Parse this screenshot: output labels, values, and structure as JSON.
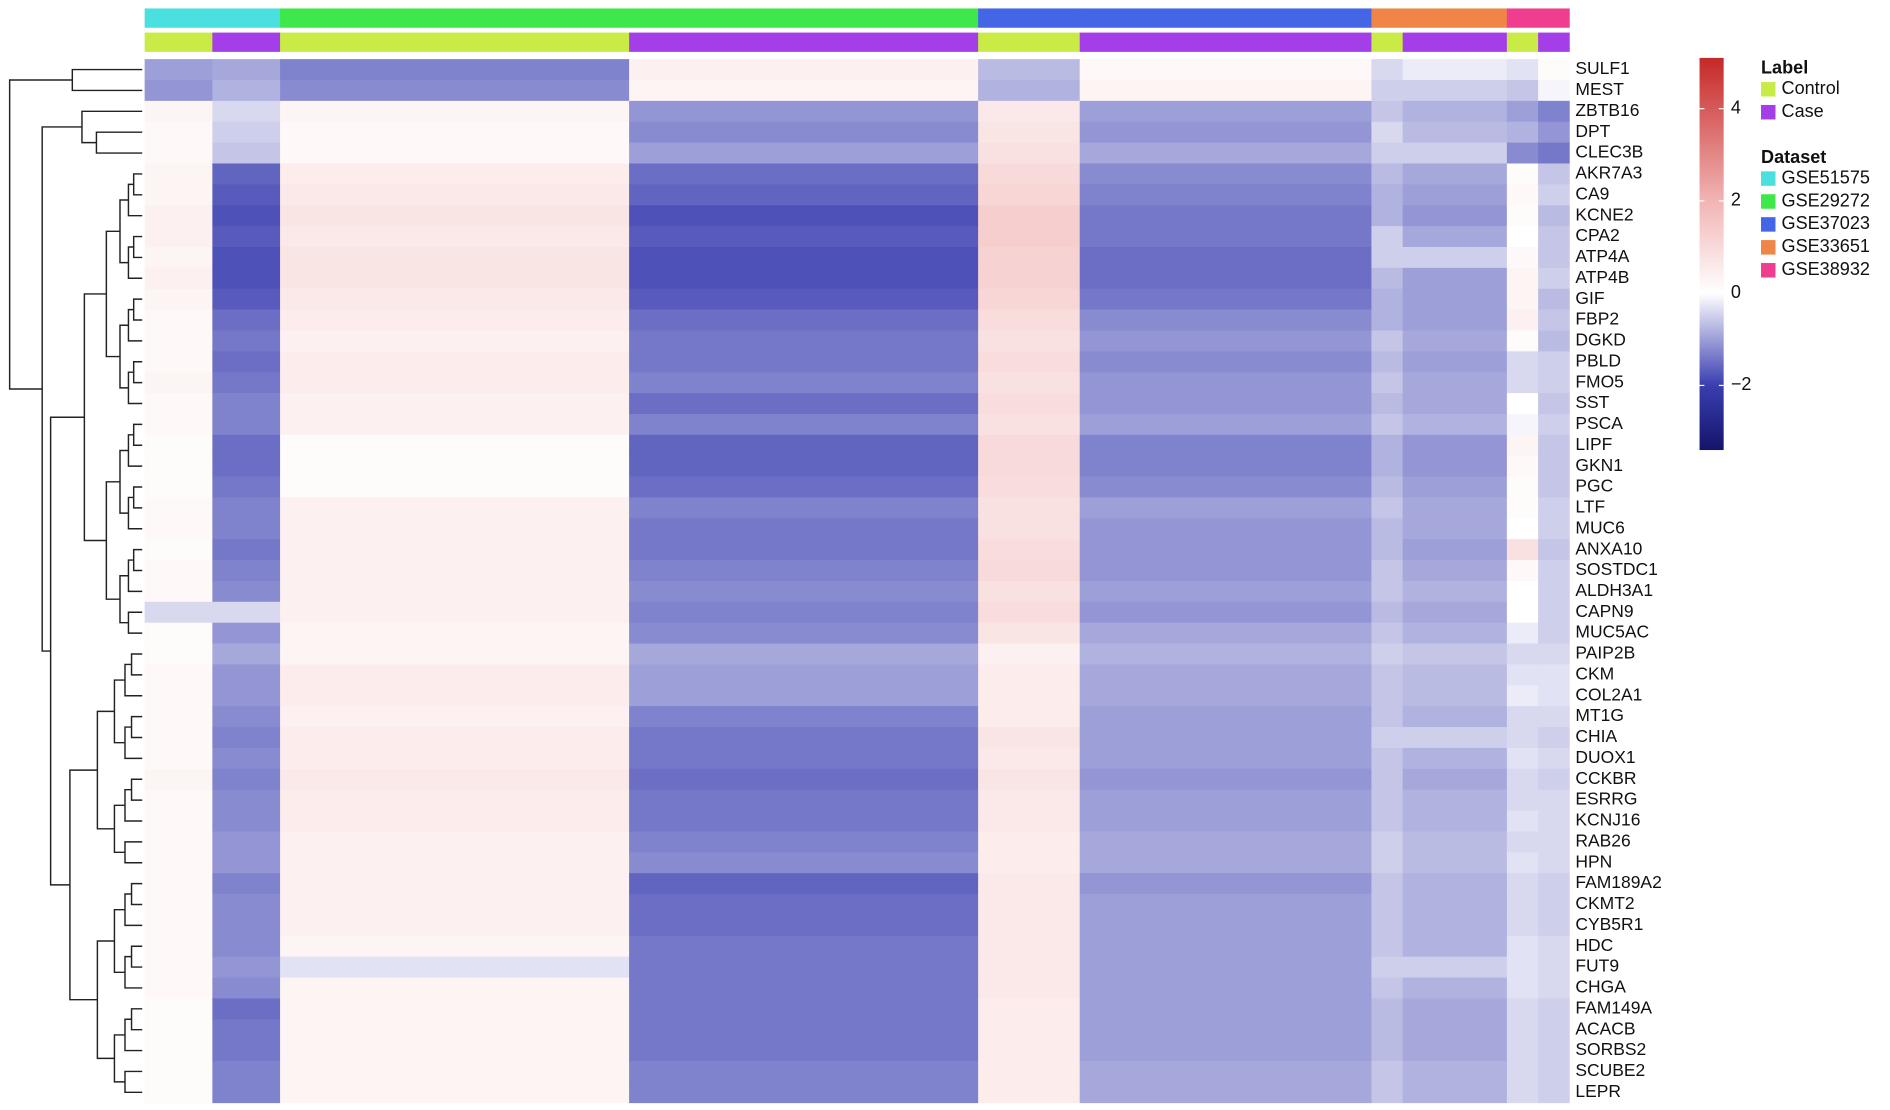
{
  "chart_data": {
    "type": "heatmap",
    "rows": [
      "SULF1",
      "MEST",
      "ZBTB16",
      "DPT",
      "CLEC3B",
      "AKR7A3",
      "CA9",
      "KCNE2",
      "CPA2",
      "ATP4A",
      "ATP4B",
      "GIF",
      "FBP2",
      "DGKD",
      "PBLD",
      "FMO5",
      "SST",
      "PSCA",
      "LIPF",
      "GKN1",
      "PGC",
      "LTF",
      "MUC6",
      "ANXA10",
      "SOSTDC1",
      "ALDH3A1",
      "CAPN9",
      "MUC5AC",
      "PAIP2B",
      "CKM",
      "COL2A1",
      "MT1G",
      "CHIA",
      "DUOX1",
      "CCKBR",
      "ESRRG",
      "KCNJ16",
      "RAB26",
      "HPN",
      "FAM189A2",
      "CKMT2",
      "CYB5R1",
      "HDC",
      "FUT9",
      "CHGA",
      "FAM149A",
      "ACACB",
      "SORBS2",
      "SCUBE2",
      "LEPR"
    ],
    "column_groups": [
      {
        "dataset": "GSE51575",
        "label": "Control",
        "n": 26
      },
      {
        "dataset": "GSE51575",
        "label": "Case",
        "n": 26
      },
      {
        "dataset": "GSE29272",
        "label": "Control",
        "n": 134
      },
      {
        "dataset": "GSE29272",
        "label": "Case",
        "n": 134
      },
      {
        "dataset": "GSE37023",
        "label": "Control",
        "n": 39
      },
      {
        "dataset": "GSE37023",
        "label": "Case",
        "n": 112
      },
      {
        "dataset": "GSE33651",
        "label": "Control",
        "n": 12
      },
      {
        "dataset": "GSE33651",
        "label": "Case",
        "n": 40
      },
      {
        "dataset": "GSE38932",
        "label": "Control",
        "n": 12
      },
      {
        "dataset": "GSE38932",
        "label": "Case",
        "n": 12
      }
    ],
    "values": [
      [
        -1.0,
        -0.9,
        -1.3,
        0.4,
        -0.7,
        0.2,
        -0.4,
        -0.2,
        -0.3,
        0.1
      ],
      [
        -1.1,
        -0.8,
        -1.2,
        0.3,
        -0.8,
        0.3,
        -0.5,
        -0.5,
        -0.6,
        -0.1
      ],
      [
        0.3,
        -0.4,
        0.3,
        -1.1,
        0.6,
        -1.0,
        -0.6,
        -0.8,
        -1.0,
        -1.3
      ],
      [
        0.2,
        -0.5,
        0.2,
        -1.2,
        0.7,
        -1.1,
        -0.4,
        -0.7,
        -0.8,
        -1.1
      ],
      [
        0.2,
        -0.6,
        0.2,
        -1.0,
        0.8,
        -0.9,
        -0.5,
        -0.5,
        -1.2,
        -1.4
      ],
      [
        0.3,
        -1.6,
        0.5,
        -1.5,
        1.0,
        -1.2,
        -0.7,
        -0.9,
        0.1,
        -0.6
      ],
      [
        0.3,
        -1.7,
        0.6,
        -1.6,
        1.1,
        -1.3,
        -0.8,
        -1.0,
        0.2,
        -0.5
      ],
      [
        0.4,
        -1.8,
        0.7,
        -1.8,
        1.3,
        -1.4,
        -0.8,
        -1.1,
        0.1,
        -0.7
      ],
      [
        0.4,
        -1.7,
        0.6,
        -1.7,
        1.3,
        -1.4,
        -0.5,
        -0.9,
        0.0,
        -0.6
      ],
      [
        0.3,
        -1.8,
        0.7,
        -1.8,
        1.2,
        -1.5,
        -0.5,
        -0.5,
        0.2,
        -0.6
      ],
      [
        0.4,
        -1.8,
        0.7,
        -1.8,
        1.2,
        -1.5,
        -0.7,
        -1.0,
        0.3,
        -0.5
      ],
      [
        0.3,
        -1.7,
        0.6,
        -1.7,
        1.1,
        -1.4,
        -0.8,
        -1.0,
        0.3,
        -0.7
      ],
      [
        0.2,
        -1.5,
        0.5,
        -1.5,
        0.9,
        -1.2,
        -0.8,
        -1.0,
        0.4,
        -0.6
      ],
      [
        0.2,
        -1.4,
        0.4,
        -1.4,
        0.8,
        -1.1,
        -0.6,
        -0.9,
        0.1,
        -0.7
      ],
      [
        0.2,
        -1.5,
        0.5,
        -1.4,
        0.9,
        -1.2,
        -0.7,
        -1.0,
        -0.4,
        -0.5
      ],
      [
        0.3,
        -1.4,
        0.5,
        -1.3,
        0.8,
        -1.1,
        -0.6,
        -0.9,
        -0.4,
        -0.5
      ],
      [
        0.2,
        -1.3,
        0.4,
        -1.5,
        0.9,
        -1.1,
        -0.7,
        -0.9,
        0.0,
        -0.6
      ],
      [
        0.2,
        -1.3,
        0.4,
        -1.3,
        0.8,
        -1.0,
        -0.6,
        -0.8,
        -0.1,
        -0.5
      ],
      [
        0.1,
        -1.5,
        0.1,
        -1.6,
        1.0,
        -1.3,
        -0.8,
        -1.1,
        0.3,
        -0.6
      ],
      [
        0.1,
        -1.5,
        0.1,
        -1.6,
        1.0,
        -1.3,
        -0.8,
        -1.1,
        0.2,
        -0.6
      ],
      [
        0.1,
        -1.4,
        0.1,
        -1.5,
        0.9,
        -1.2,
        -0.7,
        -1.0,
        0.1,
        -0.6
      ],
      [
        0.2,
        -1.3,
        0.4,
        -1.3,
        0.8,
        -1.0,
        -0.6,
        -0.9,
        0.1,
        -0.5
      ],
      [
        0.2,
        -1.3,
        0.4,
        -1.4,
        0.8,
        -1.1,
        -0.7,
        -0.9,
        0.0,
        -0.5
      ],
      [
        0.1,
        -1.4,
        0.4,
        -1.4,
        0.9,
        -1.1,
        -0.7,
        -1.0,
        0.8,
        -0.6
      ],
      [
        0.2,
        -1.3,
        0.4,
        -1.3,
        1.0,
        -1.1,
        -0.6,
        -0.9,
        0.2,
        -0.5
      ],
      [
        0.2,
        -1.2,
        0.4,
        -1.2,
        0.8,
        -1.0,
        -0.6,
        -0.8,
        0.0,
        -0.5
      ],
      [
        -0.4,
        -0.4,
        0.4,
        -1.3,
        0.9,
        -1.1,
        -0.7,
        -0.9,
        0.0,
        -0.5
      ],
      [
        0.1,
        -1.1,
        0.3,
        -1.2,
        0.7,
        -0.9,
        -0.6,
        -0.8,
        -0.2,
        -0.5
      ],
      [
        0.1,
        -0.9,
        0.3,
        -0.9,
        0.4,
        -0.8,
        -0.5,
        -0.6,
        -0.4,
        -0.4
      ],
      [
        0.2,
        -1.1,
        0.5,
        -1.0,
        0.5,
        -0.9,
        -0.6,
        -0.7,
        -0.3,
        -0.3
      ],
      [
        0.2,
        -1.1,
        0.5,
        -1.0,
        0.5,
        -0.9,
        -0.6,
        -0.7,
        -0.2,
        -0.3
      ],
      [
        0.2,
        -1.2,
        0.4,
        -1.3,
        0.5,
        -1.0,
        -0.6,
        -0.8,
        -0.4,
        -0.4
      ],
      [
        0.2,
        -1.3,
        0.5,
        -1.4,
        0.7,
        -1.0,
        -0.5,
        -0.5,
        -0.4,
        -0.5
      ],
      [
        0.2,
        -1.2,
        0.5,
        -1.4,
        0.6,
        -1.0,
        -0.6,
        -0.8,
        -0.3,
        -0.4
      ],
      [
        0.3,
        -1.3,
        0.6,
        -1.5,
        0.7,
        -1.1,
        -0.6,
        -0.9,
        -0.4,
        -0.5
      ],
      [
        0.2,
        -1.2,
        0.5,
        -1.4,
        0.6,
        -1.0,
        -0.6,
        -0.8,
        -0.4,
        -0.4
      ],
      [
        0.2,
        -1.2,
        0.5,
        -1.4,
        0.6,
        -1.0,
        -0.6,
        -0.8,
        -0.3,
        -0.4
      ],
      [
        0.2,
        -1.1,
        0.4,
        -1.3,
        0.5,
        -0.9,
        -0.5,
        -0.7,
        -0.4,
        -0.4
      ],
      [
        0.2,
        -1.1,
        0.4,
        -1.2,
        0.5,
        -0.9,
        -0.5,
        -0.7,
        -0.3,
        -0.4
      ],
      [
        0.2,
        -1.3,
        0.4,
        -1.6,
        0.6,
        -1.1,
        -0.6,
        -0.8,
        -0.4,
        -0.5
      ],
      [
        0.2,
        -1.2,
        0.4,
        -1.5,
        0.6,
        -1.0,
        -0.6,
        -0.8,
        -0.4,
        -0.5
      ],
      [
        0.2,
        -1.2,
        0.4,
        -1.5,
        0.6,
        -1.0,
        -0.6,
        -0.8,
        -0.4,
        -0.5
      ],
      [
        0.2,
        -1.2,
        0.3,
        -1.4,
        0.6,
        -1.0,
        -0.6,
        -0.8,
        -0.3,
        -0.4
      ],
      [
        0.2,
        -1.1,
        -0.3,
        -1.4,
        0.6,
        -1.0,
        -0.5,
        -0.5,
        -0.3,
        -0.4
      ],
      [
        0.2,
        -1.2,
        0.3,
        -1.4,
        0.6,
        -1.0,
        -0.6,
        -0.8,
        -0.3,
        -0.4
      ],
      [
        0.1,
        -1.5,
        0.3,
        -1.4,
        0.5,
        -1.0,
        -0.7,
        -0.9,
        -0.4,
        -0.5
      ],
      [
        0.1,
        -1.4,
        0.3,
        -1.4,
        0.5,
        -1.0,
        -0.7,
        -0.9,
        -0.4,
        -0.5
      ],
      [
        0.1,
        -1.4,
        0.3,
        -1.4,
        0.5,
        -1.0,
        -0.7,
        -0.9,
        -0.4,
        -0.5
      ],
      [
        0.1,
        -1.3,
        0.3,
        -1.3,
        0.5,
        -0.9,
        -0.6,
        -0.8,
        -0.4,
        -0.5
      ],
      [
        0.1,
        -1.3,
        0.3,
        -1.3,
        0.5,
        -0.9,
        -0.6,
        -0.8,
        -0.4,
        -0.5
      ]
    ],
    "zlim": [
      -3.4,
      5.1
    ],
    "zticks": [
      {
        "value": -2,
        "label": "−2"
      },
      0,
      2,
      4
    ],
    "colorscale": [
      [
        -3.4,
        "#14146a"
      ],
      [
        -2,
        "#3a3eb0"
      ],
      [
        0,
        "#ffffff"
      ],
      [
        2,
        "#f2b4b4"
      ],
      [
        5.1,
        "#c62828"
      ]
    ],
    "legend_label": {
      "title": "Label",
      "items": [
        {
          "name": "Control",
          "color": "#c8ec45"
        },
        {
          "name": "Case",
          "color": "#a43ee8"
        }
      ]
    },
    "legend_dataset": {
      "title": "Dataset",
      "items": [
        {
          "name": "GSE51575",
          "color": "#4ae0e0"
        },
        {
          "name": "GSE29272",
          "color": "#3ee84a"
        },
        {
          "name": "GSE37023",
          "color": "#4466e6"
        },
        {
          "name": "GSE33651",
          "color": "#ef8546"
        },
        {
          "name": "GSE38932",
          "color": "#ef3e90"
        }
      ]
    }
  }
}
